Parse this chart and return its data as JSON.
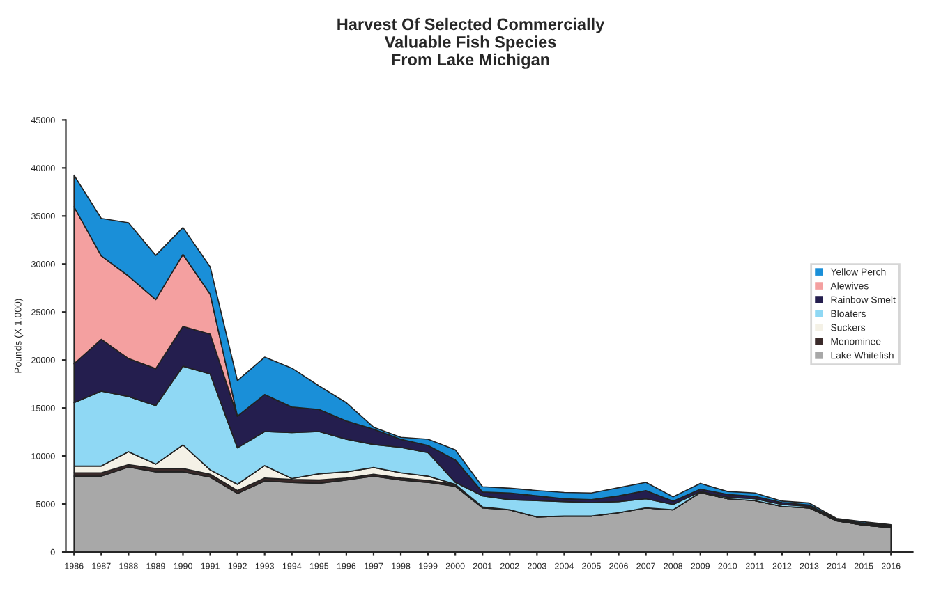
{
  "chart_data": {
    "type": "area",
    "stacked": true,
    "title": "Harvest Of Selected Commercially\nValuable Fish Species\nFrom Lake Michigan",
    "ylabel": "Pounds (X 1,000)",
    "categories": [
      "1986",
      "1987",
      "1988",
      "1989",
      "1990",
      "1991",
      "1992",
      "1993",
      "1994",
      "1995",
      "1996",
      "1997",
      "1998",
      "1999",
      "2000",
      "2001",
      "2002",
      "2003",
      "2004",
      "2005",
      "2006",
      "2007",
      "2008",
      "2009",
      "2010",
      "2011",
      "2012",
      "2013",
      "2014",
      "2015",
      "2016"
    ],
    "ylim": [
      0,
      45000
    ],
    "yticks": [
      0,
      5000,
      10000,
      15000,
      20000,
      25000,
      30000,
      35000,
      40000,
      45000
    ],
    "grid": false,
    "legend": "right",
    "series": [
      {
        "name": "Lake Whitefish",
        "color": "#a8a8a8",
        "values": [
          7900,
          7900,
          8850,
          8350,
          8350,
          7800,
          6100,
          7400,
          7250,
          7150,
          7500,
          7900,
          7500,
          7250,
          6850,
          4600,
          4400,
          3650,
          3750,
          3750,
          4100,
          4600,
          4400,
          6200,
          5550,
          5350,
          4750,
          4600,
          3250,
          2800,
          2550
        ]
      },
      {
        "name": "Menominee",
        "color": "#3a2a2a",
        "values": [
          350,
          350,
          250,
          350,
          350,
          300,
          300,
          300,
          300,
          350,
          200,
          200,
          200,
          200,
          200,
          50,
          0,
          0,
          0,
          0,
          0,
          0,
          0,
          0,
          0,
          0,
          0,
          0,
          0,
          0,
          0
        ]
      },
      {
        "name": "Suckers",
        "color": "#f4f1e6",
        "values": [
          700,
          700,
          1350,
          450,
          2450,
          450,
          650,
          1300,
          100,
          650,
          650,
          700,
          550,
          450,
          0,
          50,
          0,
          0,
          0,
          0,
          0,
          0,
          0,
          0,
          0,
          0,
          0,
          0,
          0,
          0,
          0
        ]
      },
      {
        "name": "Bloaters",
        "color": "#8fd8f4",
        "values": [
          6600,
          7800,
          5750,
          6100,
          8200,
          10000,
          3800,
          3550,
          4800,
          4400,
          3400,
          2400,
          2650,
          2450,
          200,
          1150,
          1050,
          1700,
          1500,
          1400,
          1150,
          950,
          550,
          100,
          150,
          200,
          200,
          150,
          50,
          100,
          100
        ]
      },
      {
        "name": "Rainbow Smelt",
        "color": "#241e4e",
        "values": [
          4050,
          5400,
          3950,
          3850,
          4150,
          4150,
          3300,
          3850,
          2650,
          2300,
          1900,
          1600,
          850,
          750,
          2350,
          400,
          700,
          500,
          300,
          300,
          600,
          850,
          350,
          250,
          300,
          250,
          200,
          150,
          100,
          100,
          100
        ]
      },
      {
        "name": "Alewives",
        "color": "#f4a0a0",
        "values": [
          16350,
          8700,
          8600,
          7200,
          7500,
          4150,
          0,
          0,
          0,
          0,
          0,
          0,
          0,
          0,
          0,
          0,
          0,
          0,
          0,
          0,
          0,
          0,
          0,
          0,
          0,
          0,
          0,
          0,
          0,
          0,
          0
        ]
      },
      {
        "name": "Yellow Perch",
        "color": "#1a8fd8",
        "values": [
          3300,
          3900,
          5550,
          4600,
          2800,
          2850,
          3700,
          3900,
          4050,
          2450,
          1900,
          200,
          200,
          650,
          1050,
          550,
          500,
          550,
          650,
          700,
          850,
          850,
          450,
          600,
          300,
          350,
          150,
          200,
          100,
          150,
          100
        ]
      }
    ]
  }
}
